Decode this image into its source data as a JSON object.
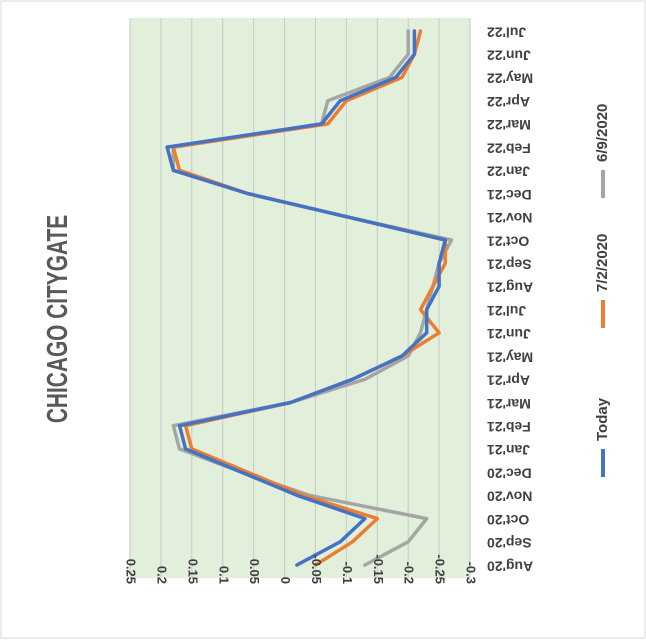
{
  "chart_data": {
    "type": "line",
    "title": "CHICAGO CITYGATE",
    "xlabel": "",
    "ylabel": "",
    "categories": [
      "Aug'20",
      "Sep'20",
      "Oct'20",
      "Nov'20",
      "Dec'20",
      "Jan'21",
      "Feb'21",
      "Mar'21",
      "Apr'21",
      "May'21",
      "Jun'21",
      "Jul'21",
      "Aug'21",
      "Sep'21",
      "Oct'21",
      "Nov'21",
      "Dec'21",
      "Jan'22",
      "Feb'22",
      "Mar'22",
      "Apr'22",
      "May'22",
      "Jun'22",
      "Jul'22"
    ],
    "value_axis": {
      "min": -0.3,
      "max": 0.25,
      "ticks": [
        0.25,
        0.2,
        0.15,
        0.1,
        0.05,
        0,
        -0.05,
        -0.1,
        -0.15,
        -0.2,
        -0.25,
        -0.3
      ],
      "tick_labels": [
        "0.25",
        "0.2",
        "0.15",
        "0.1",
        "0.05",
        "0",
        "-0.05",
        "-0.1",
        "-0.15",
        "-0.2",
        "-0.25",
        "-0.3"
      ]
    },
    "grid": true,
    "legend_position": "right",
    "plot_background": "#e2efda",
    "series": [
      {
        "name": "Today",
        "color": "#4472c4",
        "values": [
          -0.02,
          -0.09,
          -0.13,
          -0.02,
          0.07,
          0.16,
          0.17,
          -0.01,
          -0.11,
          -0.19,
          -0.23,
          -0.23,
          -0.25,
          -0.25,
          -0.26,
          -0.1,
          0.06,
          0.18,
          0.19,
          -0.06,
          -0.09,
          -0.18,
          -0.21,
          -0.21
        ]
      },
      {
        "name": "7/2/2020",
        "color": "#ed7d31",
        "values": [
          -0.05,
          -0.11,
          -0.15,
          -0.03,
          0.06,
          0.15,
          0.16,
          -0.01,
          -0.11,
          -0.19,
          -0.25,
          -0.22,
          -0.24,
          -0.26,
          -0.26,
          -0.1,
          0.06,
          0.17,
          0.18,
          -0.07,
          -0.1,
          -0.19,
          -0.21,
          -0.22
        ]
      },
      {
        "name": "6/9/2020",
        "color": "#a5a5a5",
        "values": [
          -0.13,
          -0.2,
          -0.23,
          -0.04,
          0.07,
          0.17,
          0.18,
          -0.01,
          -0.13,
          -0.2,
          -0.22,
          -0.23,
          -0.24,
          -0.25,
          -0.27,
          -0.1,
          0.06,
          0.18,
          0.18,
          -0.06,
          -0.07,
          -0.17,
          -0.2,
          -0.2
        ]
      }
    ]
  }
}
